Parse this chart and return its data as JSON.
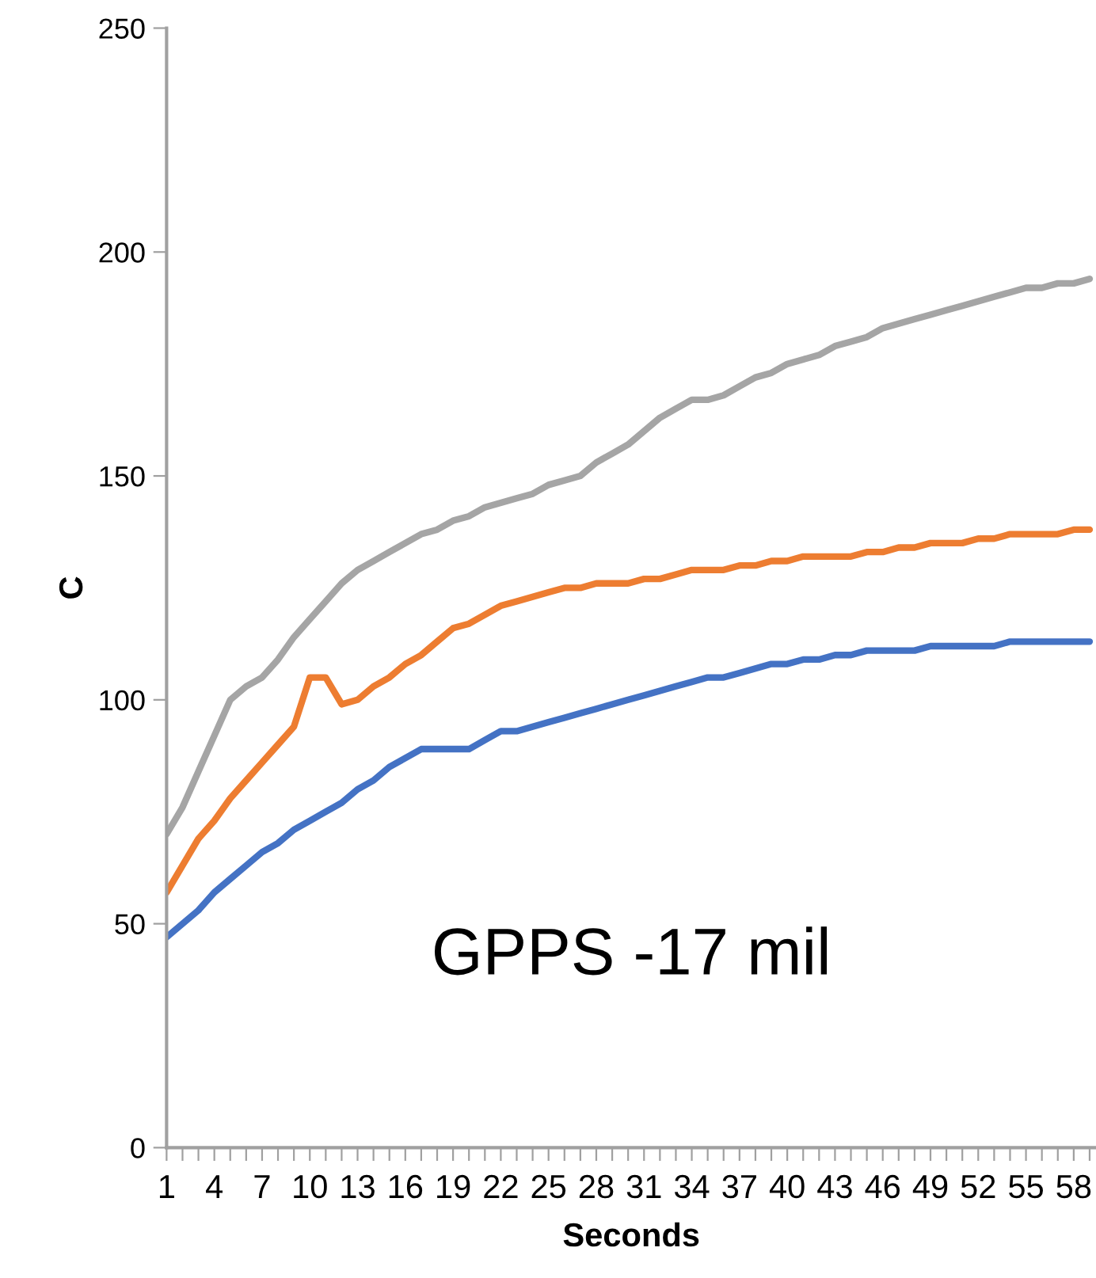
{
  "chart_data": {
    "type": "line",
    "xlabel": "Seconds",
    "ylabel": "C",
    "categories": [
      "1",
      null,
      null,
      "4",
      null,
      null,
      "7",
      null,
      null,
      "10",
      null,
      null,
      "13",
      null,
      null,
      "16",
      null,
      null,
      "19",
      null,
      null,
      "22",
      null,
      null,
      "25",
      null,
      null,
      "28",
      null,
      null,
      "31",
      null,
      null,
      "34",
      null,
      null,
      "37",
      null,
      null,
      "40",
      null,
      null,
      "43",
      null,
      null,
      "46",
      null,
      null,
      "49",
      null,
      null,
      "52",
      null,
      null,
      "55",
      null,
      null,
      "58",
      null
    ],
    "series": [
      {
        "color": "#4472c4",
        "values": [
          47,
          50,
          53,
          57,
          60,
          63,
          66,
          68,
          71,
          73,
          75,
          77,
          80,
          82,
          85,
          87,
          89,
          89,
          89,
          89,
          91,
          93,
          93,
          94,
          95,
          96,
          97,
          98,
          99,
          100,
          101,
          102,
          103,
          104,
          105,
          105,
          106,
          107,
          108,
          108,
          109,
          109,
          110,
          110,
          111,
          111,
          111,
          111,
          112,
          112,
          112,
          112,
          112,
          113,
          113,
          113,
          113,
          113,
          113
        ]
      },
      {
        "color": "#ed7d31",
        "values": [
          57,
          63,
          69,
          73,
          78,
          82,
          86,
          90,
          94,
          105,
          105,
          99,
          100,
          103,
          105,
          108,
          110,
          113,
          116,
          117,
          119,
          121,
          122,
          123,
          124,
          125,
          125,
          126,
          126,
          126,
          127,
          127,
          128,
          129,
          129,
          129,
          130,
          130,
          131,
          131,
          132,
          132,
          132,
          132,
          133,
          133,
          134,
          134,
          135,
          135,
          135,
          136,
          136,
          137,
          137,
          137,
          137,
          138,
          138
        ]
      },
      {
        "color": "#a5a5a5",
        "values": [
          70,
          76,
          84,
          92,
          100,
          103,
          105,
          109,
          114,
          118,
          122,
          126,
          129,
          131,
          133,
          135,
          137,
          138,
          140,
          141,
          143,
          144,
          145,
          146,
          148,
          149,
          150,
          153,
          155,
          157,
          160,
          163,
          165,
          167,
          167,
          168,
          170,
          172,
          173,
          175,
          176,
          177,
          179,
          180,
          181,
          183,
          184,
          185,
          186,
          187,
          188,
          189,
          190,
          191,
          192,
          192,
          193,
          193,
          194
        ]
      }
    ],
    "ylim": [
      0,
      250
    ],
    "yticks": [
      0,
      50,
      100,
      150,
      200,
      250
    ],
    "annotations": [
      "GPPS -17 mil"
    ]
  }
}
